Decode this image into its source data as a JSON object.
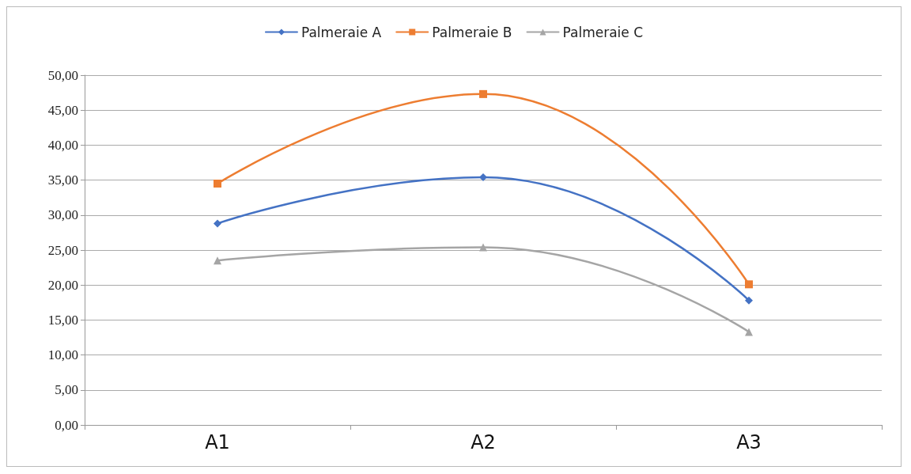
{
  "chart_data": {
    "type": "line",
    "categories": [
      "A1",
      "A2",
      "A3"
    ],
    "series": [
      {
        "name": "Palmeraie A",
        "color": "#4472c4",
        "marker": "diamond",
        "values": [
          28.8,
          35.4,
          17.8
        ]
      },
      {
        "name": "Palmeraie B",
        "color": "#ed7d31",
        "marker": "square",
        "values": [
          34.5,
          47.3,
          20.1
        ]
      },
      {
        "name": "Palmeraie C",
        "color": "#a5a5a5",
        "marker": "triangle",
        "values": [
          23.5,
          25.4,
          13.3
        ]
      }
    ],
    "ylim": [
      0,
      50
    ],
    "yticks": [
      {
        "value": 0,
        "label": "0,00"
      },
      {
        "value": 5,
        "label": "5,00"
      },
      {
        "value": 10,
        "label": "10,00"
      },
      {
        "value": 15,
        "label": "15,00"
      },
      {
        "value": 20,
        "label": "20,00"
      },
      {
        "value": 25,
        "label": "25,00"
      },
      {
        "value": 30,
        "label": "30,00"
      },
      {
        "value": 35,
        "label": "35,00"
      },
      {
        "value": 40,
        "label": "40,00"
      },
      {
        "value": 45,
        "label": "45,00"
      },
      {
        "value": 50,
        "label": "50,00"
      }
    ],
    "grid": "y",
    "legend": "top",
    "line_style": "solid"
  }
}
